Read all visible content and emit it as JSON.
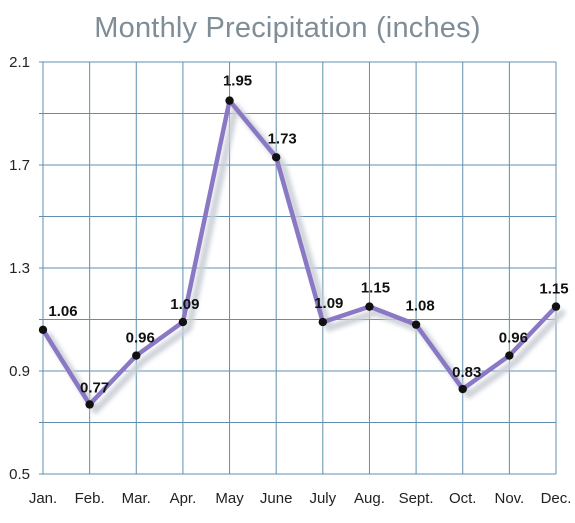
{
  "chart_data": {
    "type": "line",
    "title": "Monthly Precipitation (inches)",
    "categories": [
      "Jan.",
      "Feb.",
      "Mar.",
      "Apr.",
      "May",
      "June",
      "July",
      "Aug.",
      "Sept.",
      "Oct.",
      "Nov.",
      "Dec."
    ],
    "values": [
      1.06,
      0.77,
      0.96,
      1.09,
      1.95,
      1.73,
      1.09,
      1.15,
      1.08,
      0.83,
      0.96,
      1.15
    ],
    "data_labels": [
      "1.06",
      "0.77",
      "0.96",
      "1.09",
      "1.95",
      "1.73",
      "1.09",
      "1.15",
      "1.08",
      "0.83",
      "0.96",
      "1.15"
    ],
    "ylim": [
      0.5,
      2.1
    ],
    "y_ticks": [
      0.5,
      0.9,
      1.3,
      1.7,
      2.1
    ],
    "y_tick_labels": [
      "0.5",
      "0.9",
      "1.3",
      "1.7",
      "2.1"
    ],
    "xlabel": "",
    "ylabel": "",
    "grid": true,
    "legend": "none",
    "colors": {
      "line": "#8a78c4",
      "shadow": "#c9cfd6",
      "grid": "#5f8fae",
      "marker": "#111111",
      "title": "#7e8d97"
    }
  }
}
